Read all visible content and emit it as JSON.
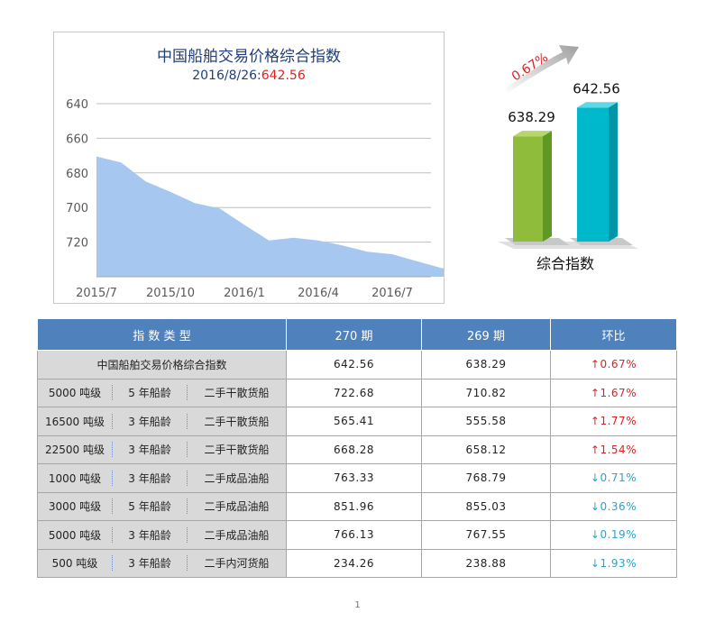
{
  "chart_data": [
    {
      "type": "area",
      "title": "中国船舶交易价格综合指数",
      "subtitle_date": "2016/8/26:",
      "subtitle_value": "642.56",
      "x_tick_labels": [
        "2015/7",
        "2015/10",
        "2016/1",
        "2016/4",
        "2016/7"
      ],
      "y_tick_labels": [
        "720",
        "700",
        "680",
        "660",
        "640"
      ],
      "ylim": [
        620,
        720
      ],
      "y_ticks": [
        640,
        660,
        680,
        700,
        720
      ],
      "grid": true,
      "fill_color": "#a6c8f0",
      "x_index_ticks": [
        0,
        3,
        6,
        9,
        12
      ],
      "x_span": 13.5,
      "series": [
        {
          "values": [
            689.5,
            686,
            675,
            669,
            662.5,
            659.5,
            650,
            641,
            642.5,
            641,
            638,
            634.5,
            633,
            629,
            625,
            623,
            623.5,
            624,
            626,
            629,
            637,
            633.5,
            634,
            631.5,
            631,
            634,
            638,
            646
          ]
        }
      ]
    },
    {
      "type": "bar",
      "categories": [
        "综合指数"
      ],
      "series": [
        {
          "values": [
            638.29
          ],
          "color": "#8fbc3a"
        },
        {
          "values": [
            642.56
          ],
          "color": "#00b8cc"
        }
      ],
      "value_labels": [
        "638.29",
        "642.56"
      ],
      "xlabel": "综合指数",
      "change_label": "0.67%"
    }
  ],
  "table": {
    "headers": [
      "指 数 类 型",
      "270 期",
      "269 期",
      "环比"
    ],
    "first_row": {
      "type": "中国船舶交易价格综合指数",
      "v270": "642.56",
      "v269": "638.29",
      "arrow": "↑",
      "change": "0.67%",
      "dir": "up"
    },
    "rows": [
      {
        "tonnage": "5000 吨级",
        "age": "5 年船龄",
        "kind": "二手干散货船",
        "v270": "722.68",
        "v269": "710.82",
        "arrow": "↑",
        "change": "1.67%",
        "dir": "up"
      },
      {
        "tonnage": "16500 吨级",
        "age": "3 年船龄",
        "kind": "二手干散货船",
        "v270": "565.41",
        "v269": "555.58",
        "arrow": "↑",
        "change": "1.77%",
        "dir": "up"
      },
      {
        "tonnage": "22500 吨级",
        "age": "3 年船龄",
        "kind": "二手干散货船",
        "v270": "668.28",
        "v269": "658.12",
        "arrow": "↑",
        "change": "1.54%",
        "dir": "up"
      },
      {
        "tonnage": "1000 吨级",
        "age": "3 年船龄",
        "kind": "二手成品油船",
        "v270": "763.33",
        "v269": "768.79",
        "arrow": "↓",
        "change": "0.71%",
        "dir": "down"
      },
      {
        "tonnage": "3000 吨级",
        "age": "5 年船龄",
        "kind": "二手成品油船",
        "v270": "851.96",
        "v269": "855.03",
        "arrow": "↓",
        "change": "0.36%",
        "dir": "down"
      },
      {
        "tonnage": "5000 吨级",
        "age": "3 年船龄",
        "kind": "二手成品油船",
        "v270": "766.13",
        "v269": "767.55",
        "arrow": "↓",
        "change": "0.19%",
        "dir": "down"
      },
      {
        "tonnage": "500 吨级",
        "age": "3 年船龄",
        "kind": "二手内河货船",
        "v270": "234.26",
        "v269": "238.88",
        "arrow": "↓",
        "change": "1.93%",
        "dir": "down"
      }
    ]
  },
  "page_number": "1"
}
